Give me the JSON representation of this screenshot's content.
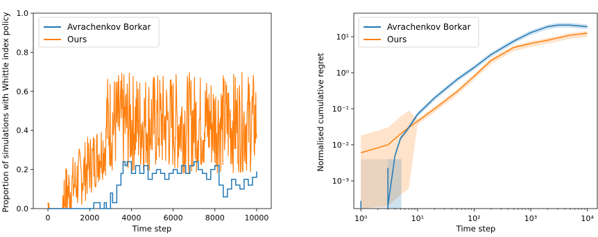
{
  "chart_data": [
    {
      "type": "line",
      "xlabel": "Time step",
      "ylabel": "Proportion of simulations with Whittle index policy",
      "xlim": [
        -700,
        10700
      ],
      "ylim": [
        0,
        1
      ],
      "xscale": "linear",
      "yscale": "linear",
      "xticks": [
        0,
        2000,
        4000,
        6000,
        8000,
        10000
      ],
      "yticks": [
        0.0,
        0.2,
        0.4,
        0.6,
        0.8,
        1.0
      ],
      "xtick_labels": [
        "0",
        "2000",
        "4000",
        "6000",
        "8000",
        "10000"
      ],
      "ytick_labels": [
        "0.0",
        "0.2",
        "0.4",
        "0.6",
        "0.8",
        "1.0"
      ],
      "grid": false,
      "legend_position": "top-left",
      "series": [
        {
          "name": "Avrachenkov Borkar",
          "color": "#1f77b4",
          "x": [
            0,
            2000,
            2200,
            2500,
            2700,
            2800,
            3000,
            3100,
            3300,
            3500,
            3600,
            3700,
            3800,
            4000,
            4200,
            4400,
            4600,
            4800,
            5000,
            5200,
            5400,
            5600,
            5800,
            6000,
            6200,
            6400,
            6600,
            6800,
            7000,
            7200,
            7400,
            7600,
            7800,
            8000,
            8200,
            8400,
            8600,
            8800,
            9000,
            9200,
            9400,
            9600,
            9800,
            10000
          ],
          "y": [
            0,
            0,
            0.03,
            0.0,
            0.03,
            0.0,
            0.08,
            0.03,
            0.12,
            0.18,
            0.24,
            0.22,
            0.24,
            0.18,
            0.22,
            0.18,
            0.22,
            0.15,
            0.18,
            0.2,
            0.18,
            0.15,
            0.18,
            0.2,
            0.18,
            0.22,
            0.18,
            0.22,
            0.24,
            0.2,
            0.18,
            0.15,
            0.2,
            0.22,
            0.12,
            0.06,
            0.1,
            0.15,
            0.12,
            0.1,
            0.15,
            0.12,
            0.16,
            0.19
          ]
        },
        {
          "name": "Ours",
          "color": "#ff7f0e",
          "x": [
            0,
            10000
          ],
          "y_summary": "noisy, rising from ~0 near step 1000 to ~0.45 mean after step 3000, ranging ~0.15–0.72"
        }
      ]
    },
    {
      "type": "line",
      "xlabel": "Time step",
      "ylabel": "Normalised cumulative regret",
      "xscale": "log",
      "yscale": "log",
      "xlim": [
        0.75,
        15000
      ],
      "ylim": [
        0.00017,
        45
      ],
      "xtick_labels": [
        "10⁰",
        "10¹",
        "10²",
        "10³",
        "10⁴"
      ],
      "ytick_labels": [
        "10⁻³",
        "10⁻²",
        "10⁻¹",
        "10⁰",
        "10¹"
      ],
      "grid": false,
      "legend_position": "top-left",
      "series": [
        {
          "name": "Avrachenkov Borkar",
          "color": "#1f77b4",
          "x": [
            3,
            4,
            5,
            7,
            10,
            20,
            50,
            100,
            200,
            500,
            1000,
            2000,
            3000,
            5000,
            10000
          ],
          "y": [
            0.0002,
            0.005,
            0.015,
            0.03,
            0.07,
            0.2,
            0.65,
            1.4,
            3.2,
            7.5,
            13,
            19,
            21,
            21,
            19
          ]
        },
        {
          "name": "Ours",
          "color": "#ff7f0e",
          "x": [
            1,
            3,
            5,
            7,
            10,
            20,
            50,
            100,
            200,
            500,
            1000,
            2000,
            5000,
            10000
          ],
          "y": [
            0.006,
            0.01,
            0.02,
            0.03,
            0.045,
            0.1,
            0.3,
            0.8,
            2.2,
            5,
            6.5,
            8,
            11,
            12.5
          ]
        }
      ]
    }
  ],
  "legend": {
    "entry1": "Avrachenkov Borkar",
    "entry2": "Ours"
  }
}
